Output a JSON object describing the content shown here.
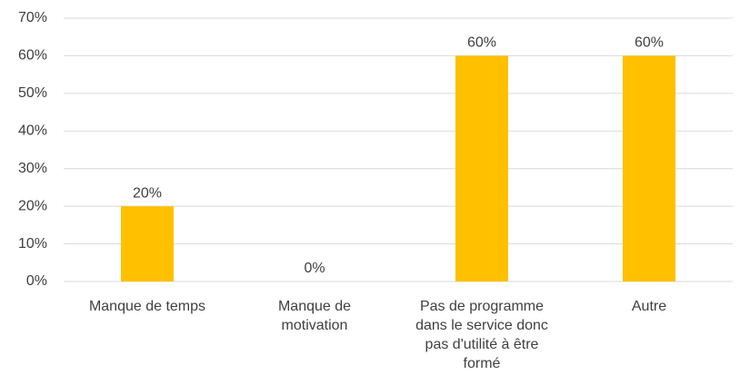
{
  "chart_data": {
    "type": "bar",
    "categories": [
      "Manque de temps",
      "Manque de motivation",
      "Pas de programme dans le service donc pas d'utilité à être formé",
      "Autre"
    ],
    "values": [
      20,
      0,
      60,
      60
    ],
    "value_labels": [
      "20%",
      "0%",
      "60%",
      "60%"
    ],
    "color": "#ffc000",
    "ylim": [
      0,
      70
    ],
    "yticks": [
      {
        "value": 0,
        "label": "0%"
      },
      {
        "value": 10,
        "label": "10%"
      },
      {
        "value": 20,
        "label": "20%"
      },
      {
        "value": 30,
        "label": "30%"
      },
      {
        "value": 40,
        "label": "40%"
      },
      {
        "value": 50,
        "label": "50%"
      },
      {
        "value": 60,
        "label": "60%"
      },
      {
        "value": 70,
        "label": "70%"
      }
    ],
    "grid": true
  }
}
